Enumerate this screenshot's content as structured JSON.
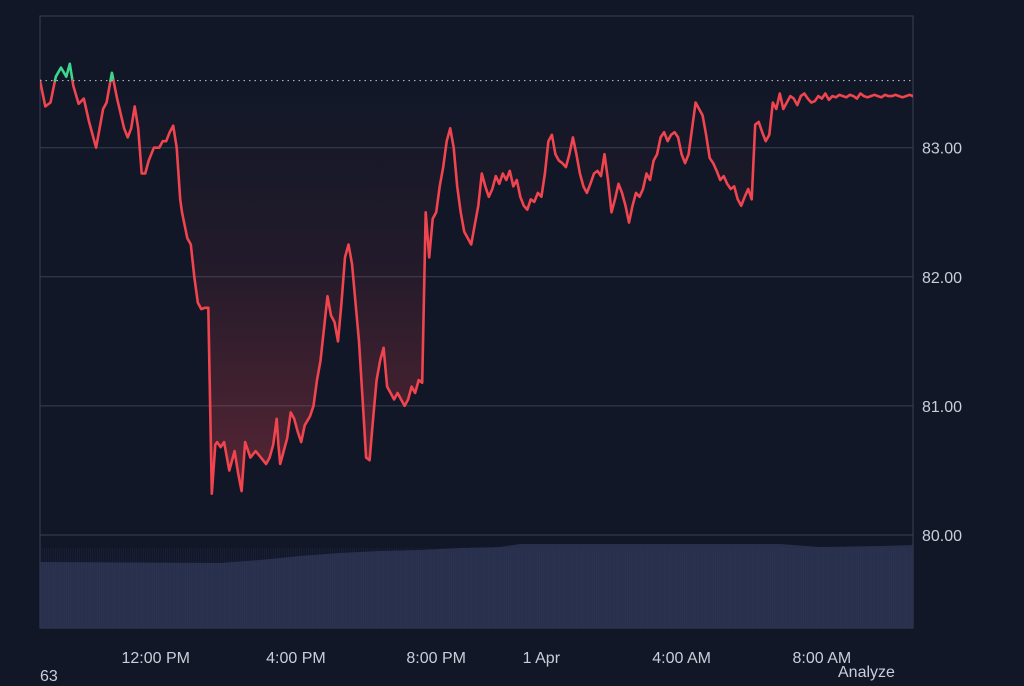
{
  "chart_data": {
    "type": "line",
    "title": "",
    "xlabel": "",
    "ylabel": "",
    "ylim": [
      79.28,
      84.02
    ],
    "y_ticks": [
      "83.00",
      "82.00",
      "81.00",
      "80.00"
    ],
    "y_tick_values": [
      83,
      82,
      81,
      80
    ],
    "x_ticks": [
      "12:00 PM",
      "4:00 PM",
      "8:00 PM",
      "1 Apr",
      "4:00 AM",
      "8:00 AM"
    ],
    "x_tick_values": [
      3,
      7,
      11,
      14,
      18,
      22
    ],
    "x_range_hours": [
      -0.3,
      24.6
    ],
    "reference_value": 83.52,
    "reference_style": "dotted",
    "above_reference_color": "#3dd68c",
    "below_reference_color": "#f0444f",
    "area_fill": "gradient red",
    "grid": "horizontal",
    "volume_bars": "dark blue strip along bottom",
    "series": [
      {
        "x": [
          -0.3,
          -0.15,
          0.0,
          0.15,
          0.3,
          0.45,
          0.55,
          0.65,
          0.8,
          0.95,
          1.1,
          1.3,
          1.5,
          1.6,
          1.75,
          1.9,
          2.1,
          2.2,
          2.3,
          2.4,
          2.5,
          2.6,
          2.7,
          2.8,
          2.95,
          3.1,
          3.2,
          3.3,
          3.4,
          3.5,
          3.6,
          3.7,
          3.75,
          3.9,
          4.0,
          4.1,
          4.2,
          4.3,
          4.4,
          4.5,
          4.6,
          4.7,
          4.75,
          4.85,
          4.95,
          5.1,
          5.25,
          5.35,
          5.45,
          5.55,
          5.7,
          5.85,
          6.0,
          6.15,
          6.25,
          6.35,
          6.45,
          6.5,
          6.55,
          6.65,
          6.75,
          6.85,
          6.95,
          7.05,
          7.15,
          7.25,
          7.4,
          7.5,
          7.6,
          7.7,
          7.8,
          7.9,
          8.0,
          8.1,
          8.2,
          8.3,
          8.4,
          8.5,
          8.6,
          8.7,
          8.8,
          8.9,
          9.0,
          9.1,
          9.2,
          9.3,
          9.4,
          9.5,
          9.6,
          9.7,
          9.8,
          9.9,
          10.0,
          10.1,
          10.2,
          10.3,
          10.4,
          10.5,
          10.6,
          10.7,
          10.8,
          10.9,
          11.0,
          11.1,
          11.2,
          11.3,
          11.4,
          11.5,
          11.6,
          11.7,
          11.8,
          11.9,
          12.0,
          12.1,
          12.2,
          12.3,
          12.4,
          12.5,
          12.6,
          12.7,
          12.8,
          12.9,
          13.0,
          13.1,
          13.2,
          13.3,
          13.4,
          13.5,
          13.6,
          13.7,
          13.8,
          13.9,
          14.0,
          14.1,
          14.2,
          14.3,
          14.4,
          14.5,
          14.6,
          14.7,
          14.8,
          14.9,
          15.0,
          15.1,
          15.2,
          15.3,
          15.4,
          15.5,
          15.6,
          15.7,
          15.8,
          15.9,
          16.0,
          16.1,
          16.2,
          16.3,
          16.4,
          16.5,
          16.6,
          16.7,
          16.8,
          16.9,
          17.0,
          17.1,
          17.2,
          17.3,
          17.4,
          17.5,
          17.6,
          17.7,
          17.8,
          17.9,
          18.0,
          18.1,
          18.2,
          18.3,
          18.4,
          18.5,
          18.6,
          18.7,
          18.8,
          18.9,
          19.0,
          19.1,
          19.2,
          19.3,
          19.4,
          19.5,
          19.6,
          19.7,
          19.8,
          19.9,
          20.0,
          20.1,
          20.2,
          20.3,
          20.4,
          20.5,
          20.6,
          20.7,
          20.8,
          20.9,
          21.0,
          21.1,
          21.2,
          21.3,
          21.4,
          21.5,
          21.6,
          21.7,
          21.8,
          21.9,
          22.0,
          22.1,
          22.2,
          22.3,
          22.4,
          22.5,
          22.6,
          22.7,
          22.8,
          22.9,
          23.0,
          23.1,
          23.2,
          23.3,
          23.4,
          23.5,
          23.6,
          23.7,
          23.8,
          23.9,
          24.0,
          24.1,
          24.2,
          24.3,
          24.4,
          24.5,
          24.6
        ],
        "y": [
          83.52,
          83.32,
          83.35,
          83.55,
          83.62,
          83.55,
          83.65,
          83.48,
          83.34,
          83.38,
          83.2,
          83.0,
          83.3,
          83.35,
          83.58,
          83.38,
          83.15,
          83.08,
          83.15,
          83.32,
          83.15,
          82.8,
          82.8,
          82.9,
          83.0,
          83.0,
          83.05,
          83.05,
          83.12,
          83.17,
          83.0,
          82.6,
          82.5,
          82.3,
          82.25,
          82.0,
          81.8,
          81.75,
          81.76,
          81.76,
          80.32,
          80.7,
          80.72,
          80.68,
          80.72,
          80.5,
          80.65,
          80.48,
          80.34,
          80.72,
          80.6,
          80.65,
          80.6,
          80.55,
          80.6,
          80.7,
          80.9,
          80.7,
          80.55,
          80.65,
          80.75,
          80.95,
          80.9,
          80.8,
          80.72,
          80.85,
          80.92,
          81.0,
          81.2,
          81.35,
          81.6,
          81.85,
          81.7,
          81.65,
          81.5,
          81.8,
          82.15,
          82.25,
          82.1,
          81.8,
          81.5,
          81.05,
          80.6,
          80.58,
          80.9,
          81.2,
          81.35,
          81.45,
          81.15,
          81.1,
          81.05,
          81.1,
          81.05,
          81.0,
          81.05,
          81.15,
          81.1,
          81.2,
          81.18,
          82.5,
          82.15,
          82.45,
          82.5,
          82.7,
          82.85,
          83.05,
          83.15,
          83.0,
          82.7,
          82.5,
          82.35,
          82.3,
          82.25,
          82.4,
          82.55,
          82.8,
          82.7,
          82.62,
          82.68,
          82.78,
          82.72,
          82.8,
          82.75,
          82.82,
          82.7,
          82.75,
          82.62,
          82.55,
          82.52,
          82.6,
          82.58,
          82.65,
          82.62,
          82.8,
          83.05,
          83.1,
          82.95,
          82.9,
          82.88,
          82.85,
          82.95,
          83.08,
          82.95,
          82.8,
          82.7,
          82.65,
          82.72,
          82.8,
          82.82,
          82.78,
          82.95,
          82.75,
          82.5,
          82.6,
          82.72,
          82.65,
          82.55,
          82.42,
          82.55,
          82.65,
          82.62,
          82.68,
          82.8,
          82.75,
          82.9,
          82.95,
          83.08,
          83.12,
          83.05,
          83.1,
          83.12,
          83.08,
          82.95,
          82.88,
          82.95,
          83.15,
          83.35,
          83.3,
          83.25,
          83.1,
          82.92,
          82.88,
          82.82,
          82.75,
          82.78,
          82.72,
          82.68,
          82.7,
          82.6,
          82.55,
          82.62,
          82.68,
          82.6,
          83.18,
          83.2,
          83.12,
          83.05,
          83.1,
          83.35,
          83.3,
          83.42,
          83.3,
          83.35,
          83.4,
          83.38,
          83.33,
          83.4,
          83.42,
          83.38,
          83.35,
          83.36,
          83.4,
          83.38,
          83.42,
          83.37,
          83.4,
          83.39,
          83.41,
          83.4,
          83.39,
          83.41,
          83.4,
          83.38,
          83.42,
          83.4,
          83.39,
          83.4,
          83.41,
          83.4,
          83.39,
          83.41,
          83.4,
          83.4,
          83.41,
          83.4,
          83.39,
          83.4,
          83.41,
          83.4
        ]
      }
    ]
  },
  "footer": {
    "left_text": "63",
    "right_link": "Analyze"
  },
  "colors": {
    "background": "#111727",
    "grid": "#39404f",
    "volume": "#2b3452",
    "text": "#c9ced9"
  }
}
